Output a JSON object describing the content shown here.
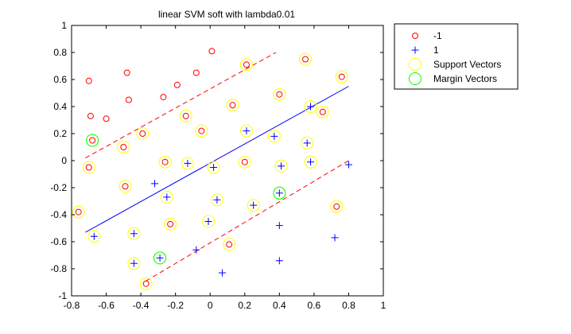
{
  "chart_data": {
    "type": "scatter",
    "title": "linear SVM soft with lambda0.01",
    "xlabel": "",
    "ylabel": "",
    "xlim": [
      -0.8,
      1
    ],
    "ylim": [
      -1,
      1
    ],
    "xticks": [
      "-0.8",
      "-0.6",
      "-0.4",
      "-0.2",
      "0",
      "0.2",
      "0.4",
      "0.6",
      "0.8",
      "1"
    ],
    "yticks": [
      "-1",
      "-0.8",
      "-0.6",
      "-0.4",
      "-0.2",
      "0",
      "0.2",
      "0.4",
      "0.6",
      "0.8",
      "1"
    ],
    "grid": false,
    "legend_position": "top-right-outside",
    "colors": {
      "class_neg": "#ff0000",
      "class_pos": "#0000ff",
      "support": "#ffff00",
      "margin": "#00ff00",
      "boundary": "#0000ff",
      "margin_line": "#ff0000"
    },
    "legend": [
      {
        "label": "-1",
        "marker": "circle-red"
      },
      {
        "label": "1",
        "marker": "plus-blue"
      },
      {
        "label": "Support Vectors",
        "marker": "circle-yellow"
      },
      {
        "label": "Margin Vectors",
        "marker": "circle-green"
      }
    ],
    "series": [
      {
        "name": "-1",
        "marker": "circle",
        "points": [
          [
            -0.7,
            0.59
          ],
          [
            -0.48,
            0.65
          ],
          [
            -0.69,
            0.33
          ],
          [
            -0.6,
            0.31
          ],
          [
            -0.47,
            0.45
          ],
          [
            -0.27,
            0.47
          ],
          [
            -0.19,
            0.56
          ],
          [
            -0.08,
            0.65
          ],
          [
            0.01,
            0.81
          ],
          [
            0.21,
            0.71
          ],
          [
            0.55,
            0.75
          ],
          [
            0.76,
            0.62
          ],
          [
            0.4,
            0.49
          ],
          [
            0.13,
            0.41
          ],
          [
            -0.14,
            0.33
          ],
          [
            -0.39,
            0.2
          ],
          [
            -0.05,
            0.22
          ],
          [
            -0.5,
            0.1
          ],
          [
            -0.7,
            -0.05
          ],
          [
            -0.26,
            -0.01
          ],
          [
            0.2,
            -0.01
          ],
          [
            0.65,
            0.36
          ],
          [
            -0.49,
            -0.19
          ],
          [
            -0.76,
            -0.38
          ],
          [
            -0.23,
            -0.47
          ],
          [
            0.73,
            -0.34
          ],
          [
            0.11,
            -0.62
          ],
          [
            -0.37,
            -0.91
          ],
          [
            -0.68,
            0.15
          ]
        ]
      },
      {
        "name": "1",
        "marker": "plus",
        "points": [
          [
            0.58,
            0.4
          ],
          [
            0.21,
            0.22
          ],
          [
            0.37,
            0.18
          ],
          [
            0.56,
            0.13
          ],
          [
            0.58,
            -0.01
          ],
          [
            0.41,
            -0.04
          ],
          [
            0.8,
            -0.03
          ],
          [
            0.02,
            -0.05
          ],
          [
            -0.13,
            -0.02
          ],
          [
            -0.32,
            -0.17
          ],
          [
            -0.25,
            -0.27
          ],
          [
            0.04,
            -0.29
          ],
          [
            0.25,
            -0.33
          ],
          [
            0.4,
            -0.24
          ],
          [
            -0.01,
            -0.45
          ],
          [
            -0.44,
            -0.54
          ],
          [
            -0.67,
            -0.56
          ],
          [
            0.4,
            -0.48
          ],
          [
            0.72,
            -0.57
          ],
          [
            -0.08,
            -0.66
          ],
          [
            -0.29,
            -0.72
          ],
          [
            -0.44,
            -0.76
          ],
          [
            0.4,
            -0.74
          ],
          [
            0.07,
            -0.83
          ]
        ]
      },
      {
        "name": "Support Vectors",
        "marker": "circle-large",
        "points": [
          [
            0.21,
            0.71
          ],
          [
            0.55,
            0.75
          ],
          [
            0.76,
            0.62
          ],
          [
            0.4,
            0.49
          ],
          [
            0.13,
            0.41
          ],
          [
            -0.14,
            0.33
          ],
          [
            -0.39,
            0.2
          ],
          [
            -0.05,
            0.22
          ],
          [
            -0.5,
            0.1
          ],
          [
            -0.7,
            -0.05
          ],
          [
            -0.26,
            -0.01
          ],
          [
            0.2,
            -0.01
          ],
          [
            0.65,
            0.36
          ],
          [
            -0.49,
            -0.19
          ],
          [
            -0.76,
            -0.38
          ],
          [
            -0.23,
            -0.47
          ],
          [
            0.73,
            -0.34
          ],
          [
            0.11,
            -0.62
          ],
          [
            -0.37,
            -0.91
          ],
          [
            -0.68,
            0.15
          ],
          [
            0.58,
            0.4
          ],
          [
            0.21,
            0.22
          ],
          [
            0.37,
            0.18
          ],
          [
            0.56,
            0.13
          ],
          [
            0.58,
            -0.01
          ],
          [
            0.41,
            -0.04
          ],
          [
            0.02,
            -0.05
          ],
          [
            -0.13,
            -0.02
          ],
          [
            -0.25,
            -0.27
          ],
          [
            0.04,
            -0.29
          ],
          [
            0.25,
            -0.33
          ],
          [
            0.4,
            -0.24
          ],
          [
            -0.01,
            -0.45
          ],
          [
            -0.44,
            -0.54
          ],
          [
            -0.67,
            -0.56
          ],
          [
            -0.29,
            -0.72
          ],
          [
            -0.44,
            -0.76
          ]
        ]
      },
      {
        "name": "Margin Vectors",
        "marker": "circle-large",
        "points": [
          [
            -0.68,
            0.15
          ],
          [
            0.4,
            -0.24
          ],
          [
            -0.29,
            -0.72
          ]
        ]
      }
    ],
    "lines": [
      {
        "role": "decision-boundary",
        "style": "solid",
        "points": [
          [
            -0.72,
            -0.53
          ],
          [
            0.8,
            0.55
          ]
        ]
      },
      {
        "role": "margin-upper",
        "style": "dashed",
        "points": [
          [
            -0.72,
            0.02
          ],
          [
            0.38,
            0.8
          ]
        ]
      },
      {
        "role": "margin-lower",
        "style": "dashed",
        "points": [
          [
            -0.37,
            -0.89
          ],
          [
            0.8,
            0.0
          ]
        ]
      }
    ]
  }
}
